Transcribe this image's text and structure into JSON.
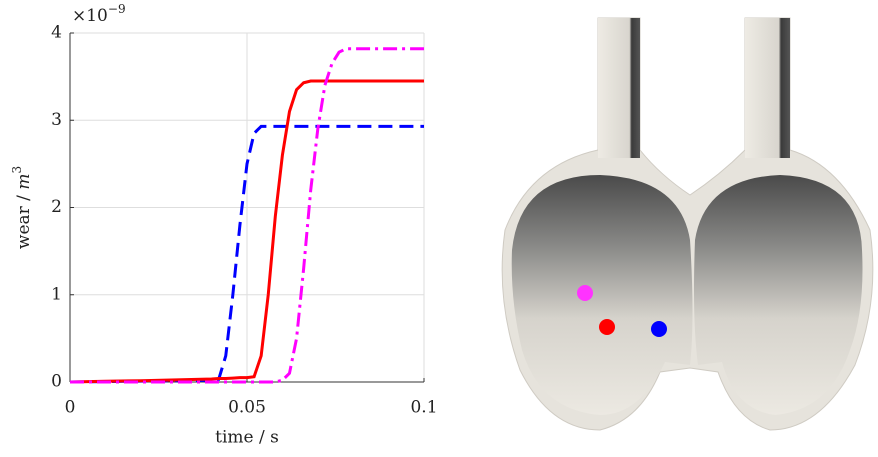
{
  "chart_data": {
    "type": "line",
    "xlabel": "time / s",
    "ylabel": "wear / ",
    "ylabel_unit": "m",
    "ylabel_unit_power": "3",
    "y_multiplier_base": "×10",
    "y_multiplier_exponent": "−9",
    "x": [
      0,
      0.01,
      0.02,
      0.03,
      0.04,
      0.042,
      0.044,
      0.046,
      0.048,
      0.05,
      0.052,
      0.054,
      0.056,
      0.058,
      0.06,
      0.062,
      0.064,
      0.066,
      0.068,
      0.07,
      0.072,
      0.074,
      0.076,
      0.078,
      0.08,
      0.09,
      0.1
    ],
    "series": [
      {
        "color": "#0000ff",
        "linestyle": "--",
        "values": [
          0,
          0.005,
          0.01,
          0.015,
          0.02,
          0.03,
          0.3,
          1.0,
          1.8,
          2.5,
          2.85,
          2.93,
          2.93,
          2.93,
          2.93,
          2.93,
          2.93,
          2.93,
          2.93,
          2.93,
          2.93,
          2.93,
          2.93,
          2.93,
          2.93,
          2.93,
          2.93
        ]
      },
      {
        "color": "#ff0000",
        "linestyle": "-",
        "values": [
          0,
          0.008,
          0.015,
          0.025,
          0.035,
          0.04,
          0.04,
          0.045,
          0.05,
          0.05,
          0.06,
          0.3,
          1.0,
          1.9,
          2.6,
          3.1,
          3.35,
          3.43,
          3.45,
          3.45,
          3.45,
          3.45,
          3.45,
          3.45,
          3.45,
          3.45,
          3.45
        ]
      },
      {
        "color": "#ff00ff",
        "linestyle": "-.",
        "values": [
          0,
          0,
          0,
          0,
          0,
          0,
          0,
          0,
          0,
          0,
          0,
          0,
          0,
          0,
          0.02,
          0.1,
          0.5,
          1.3,
          2.2,
          2.9,
          3.4,
          3.65,
          3.78,
          3.82,
          3.82,
          3.82,
          3.82
        ]
      }
    ],
    "xlim": [
      0,
      0.1
    ],
    "xticks": [
      0,
      0.05,
      0.1
    ],
    "ylim": [
      0,
      4
    ],
    "yticks": [
      0,
      1,
      2,
      3,
      4
    ],
    "grid": true
  }
}
